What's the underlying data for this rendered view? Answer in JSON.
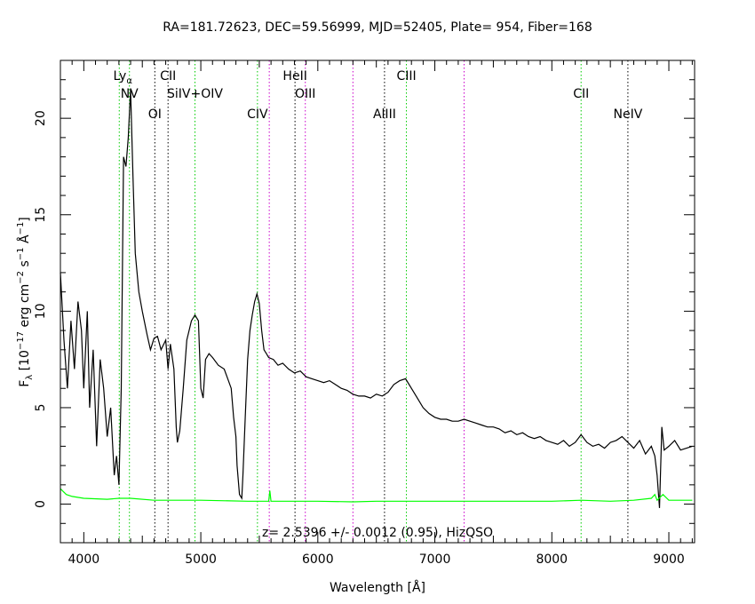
{
  "colors": {
    "background": "#ffffff",
    "spectrum": "#000000",
    "error": "#00ff00",
    "emission_line": "#00cc00",
    "absorption_line": "#000000",
    "sky_line": "#cc00cc"
  },
  "chart_data": {
    "type": "line",
    "title": "RA=181.72623, DEC=59.56999, MJD=52405, Plate=  954, Fiber=168",
    "xlabel": "Wavelength [Å]",
    "ylabel": "F_λ [10^-17 erg cm^-2 s^-1 Å^-1]",
    "xlim": [
      3800,
      9220
    ],
    "ylim": [
      -2,
      23.0
    ],
    "xticks": [
      4000,
      5000,
      6000,
      7000,
      8000,
      9000
    ],
    "yticks": [
      0,
      5,
      10,
      15,
      20
    ],
    "annotation": "z=  2.5396 +/-  0.0012 (0.95),  HizQSO",
    "series": [
      {
        "name": "flux",
        "color": "#000000",
        "points": [
          [
            3800,
            12.0
          ],
          [
            3830,
            8.5
          ],
          [
            3860,
            6.0
          ],
          [
            3890,
            9.5
          ],
          [
            3920,
            7.0
          ],
          [
            3950,
            10.5
          ],
          [
            3980,
            9.0
          ],
          [
            4000,
            6.0
          ],
          [
            4030,
            10.0
          ],
          [
            4050,
            5.0
          ],
          [
            4080,
            8.0
          ],
          [
            4110,
            3.0
          ],
          [
            4140,
            7.5
          ],
          [
            4170,
            6.0
          ],
          [
            4200,
            3.5
          ],
          [
            4230,
            5.0
          ],
          [
            4260,
            1.5
          ],
          [
            4280,
            2.5
          ],
          [
            4300,
            1.0
          ],
          [
            4320,
            6.0
          ],
          [
            4340,
            18.0
          ],
          [
            4360,
            17.5
          ],
          [
            4380,
            19.0
          ],
          [
            4400,
            21.5
          ],
          [
            4420,
            17.0
          ],
          [
            4440,
            13.0
          ],
          [
            4470,
            11.0
          ],
          [
            4500,
            10.0
          ],
          [
            4540,
            8.8
          ],
          [
            4570,
            8.0
          ],
          [
            4600,
            8.6
          ],
          [
            4630,
            8.7
          ],
          [
            4660,
            8.0
          ],
          [
            4700,
            8.5
          ],
          [
            4720,
            7.0
          ],
          [
            4740,
            8.3
          ],
          [
            4770,
            7.0
          ],
          [
            4790,
            4.0
          ],
          [
            4800,
            3.2
          ],
          [
            4820,
            3.8
          ],
          [
            4850,
            6.0
          ],
          [
            4880,
            8.5
          ],
          [
            4920,
            9.5
          ],
          [
            4950,
            9.8
          ],
          [
            4980,
            9.5
          ],
          [
            5000,
            6.0
          ],
          [
            5020,
            5.5
          ],
          [
            5040,
            7.5
          ],
          [
            5070,
            7.8
          ],
          [
            5100,
            7.6
          ],
          [
            5150,
            7.2
          ],
          [
            5200,
            7.0
          ],
          [
            5230,
            6.5
          ],
          [
            5260,
            6.0
          ],
          [
            5280,
            4.5
          ],
          [
            5300,
            3.5
          ],
          [
            5310,
            2.0
          ],
          [
            5330,
            0.5
          ],
          [
            5350,
            0.3
          ],
          [
            5360,
            1.5
          ],
          [
            5380,
            4.5
          ],
          [
            5400,
            7.5
          ],
          [
            5420,
            9.0
          ],
          [
            5440,
            9.8
          ],
          [
            5460,
            10.5
          ],
          [
            5480,
            10.9
          ],
          [
            5500,
            10.4
          ],
          [
            5520,
            9.0
          ],
          [
            5540,
            8.0
          ],
          [
            5560,
            7.8
          ],
          [
            5580,
            7.6
          ],
          [
            5620,
            7.5
          ],
          [
            5660,
            7.2
          ],
          [
            5700,
            7.3
          ],
          [
            5750,
            7.0
          ],
          [
            5800,
            6.8
          ],
          [
            5850,
            6.9
          ],
          [
            5900,
            6.6
          ],
          [
            5950,
            6.5
          ],
          [
            6000,
            6.4
          ],
          [
            6050,
            6.3
          ],
          [
            6100,
            6.4
          ],
          [
            6150,
            6.2
          ],
          [
            6200,
            6.0
          ],
          [
            6250,
            5.9
          ],
          [
            6300,
            5.7
          ],
          [
            6350,
            5.6
          ],
          [
            6400,
            5.6
          ],
          [
            6450,
            5.5
          ],
          [
            6500,
            5.7
          ],
          [
            6550,
            5.6
          ],
          [
            6600,
            5.8
          ],
          [
            6650,
            6.2
          ],
          [
            6700,
            6.4
          ],
          [
            6750,
            6.5
          ],
          [
            6800,
            6.0
          ],
          [
            6850,
            5.5
          ],
          [
            6900,
            5.0
          ],
          [
            6950,
            4.7
          ],
          [
            7000,
            4.5
          ],
          [
            7050,
            4.4
          ],
          [
            7100,
            4.4
          ],
          [
            7150,
            4.3
          ],
          [
            7200,
            4.3
          ],
          [
            7250,
            4.4
          ],
          [
            7300,
            4.3
          ],
          [
            7350,
            4.2
          ],
          [
            7400,
            4.1
          ],
          [
            7450,
            4.0
          ],
          [
            7500,
            4.0
          ],
          [
            7550,
            3.9
          ],
          [
            7600,
            3.7
          ],
          [
            7650,
            3.8
          ],
          [
            7700,
            3.6
          ],
          [
            7750,
            3.7
          ],
          [
            7800,
            3.5
          ],
          [
            7850,
            3.4
          ],
          [
            7900,
            3.5
          ],
          [
            7950,
            3.3
          ],
          [
            8000,
            3.2
          ],
          [
            8050,
            3.1
          ],
          [
            8100,
            3.3
          ],
          [
            8150,
            3.0
          ],
          [
            8200,
            3.2
          ],
          [
            8250,
            3.6
          ],
          [
            8300,
            3.2
          ],
          [
            8350,
            3.0
          ],
          [
            8400,
            3.1
          ],
          [
            8450,
            2.9
          ],
          [
            8500,
            3.2
          ],
          [
            8550,
            3.3
          ],
          [
            8600,
            3.5
          ],
          [
            8650,
            3.2
          ],
          [
            8700,
            2.9
          ],
          [
            8750,
            3.3
          ],
          [
            8800,
            2.6
          ],
          [
            8850,
            3.0
          ],
          [
            8880,
            2.5
          ],
          [
            8900,
            1.5
          ],
          [
            8920,
            -0.2
          ],
          [
            8940,
            4.0
          ],
          [
            8960,
            2.8
          ],
          [
            9000,
            3.0
          ],
          [
            9050,
            3.3
          ],
          [
            9100,
            2.8
          ],
          [
            9150,
            2.9
          ],
          [
            9200,
            3.0
          ]
        ]
      },
      {
        "name": "error",
        "color": "#00ff00",
        "points": [
          [
            3800,
            0.8
          ],
          [
            3850,
            0.5
          ],
          [
            3900,
            0.4
          ],
          [
            4000,
            0.3
          ],
          [
            4200,
            0.25
          ],
          [
            4300,
            0.3
          ],
          [
            4400,
            0.3
          ],
          [
            4600,
            0.2
          ],
          [
            4800,
            0.2
          ],
          [
            5000,
            0.2
          ],
          [
            5400,
            0.15
          ],
          [
            5580,
            0.15
          ],
          [
            5590,
            0.7
          ],
          [
            5600,
            0.15
          ],
          [
            6000,
            0.15
          ],
          [
            6300,
            0.12
          ],
          [
            6500,
            0.15
          ],
          [
            7000,
            0.15
          ],
          [
            7500,
            0.15
          ],
          [
            8000,
            0.15
          ],
          [
            8250,
            0.2
          ],
          [
            8500,
            0.15
          ],
          [
            8700,
            0.2
          ],
          [
            8850,
            0.3
          ],
          [
            8880,
            0.5
          ],
          [
            8900,
            0.2
          ],
          [
            8950,
            0.5
          ],
          [
            9000,
            0.2
          ],
          [
            9200,
            0.2
          ]
        ]
      }
    ],
    "lines": [
      {
        "x": 4303,
        "kind": "emission",
        "label": "Lyα",
        "row": 1
      },
      {
        "x": 4390,
        "kind": "emission",
        "label": "NV",
        "row": 2
      },
      {
        "x": 4607,
        "kind": "absorption",
        "label": "OI",
        "row": 3
      },
      {
        "x": 4720,
        "kind": "absorption",
        "label": "CII",
        "row": 1
      },
      {
        "x": 4950,
        "kind": "emission",
        "label": "SiIV+OIV",
        "row": 2
      },
      {
        "x": 5484,
        "kind": "emission",
        "label": "CIV",
        "row": 3
      },
      {
        "x": 5585,
        "kind": "sky",
        "label": "",
        "row": 0
      },
      {
        "x": 5805,
        "kind": "absorption",
        "label": "HeII",
        "row": 1
      },
      {
        "x": 5893,
        "kind": "sky",
        "label": "OIII",
        "row": 2
      },
      {
        "x": 6300,
        "kind": "sky",
        "label": "",
        "row": 0
      },
      {
        "x": 6570,
        "kind": "absorption",
        "label": "AlIII",
        "row": 3
      },
      {
        "x": 6757,
        "kind": "emission",
        "label": "CIII",
        "row": 1
      },
      {
        "x": 7250,
        "kind": "sky",
        "label": "",
        "row": 0
      },
      {
        "x": 8250,
        "kind": "emission",
        "label": "CII",
        "row": 2
      },
      {
        "x": 8650,
        "kind": "absorption",
        "label": "NeIV",
        "row": 3
      }
    ]
  }
}
